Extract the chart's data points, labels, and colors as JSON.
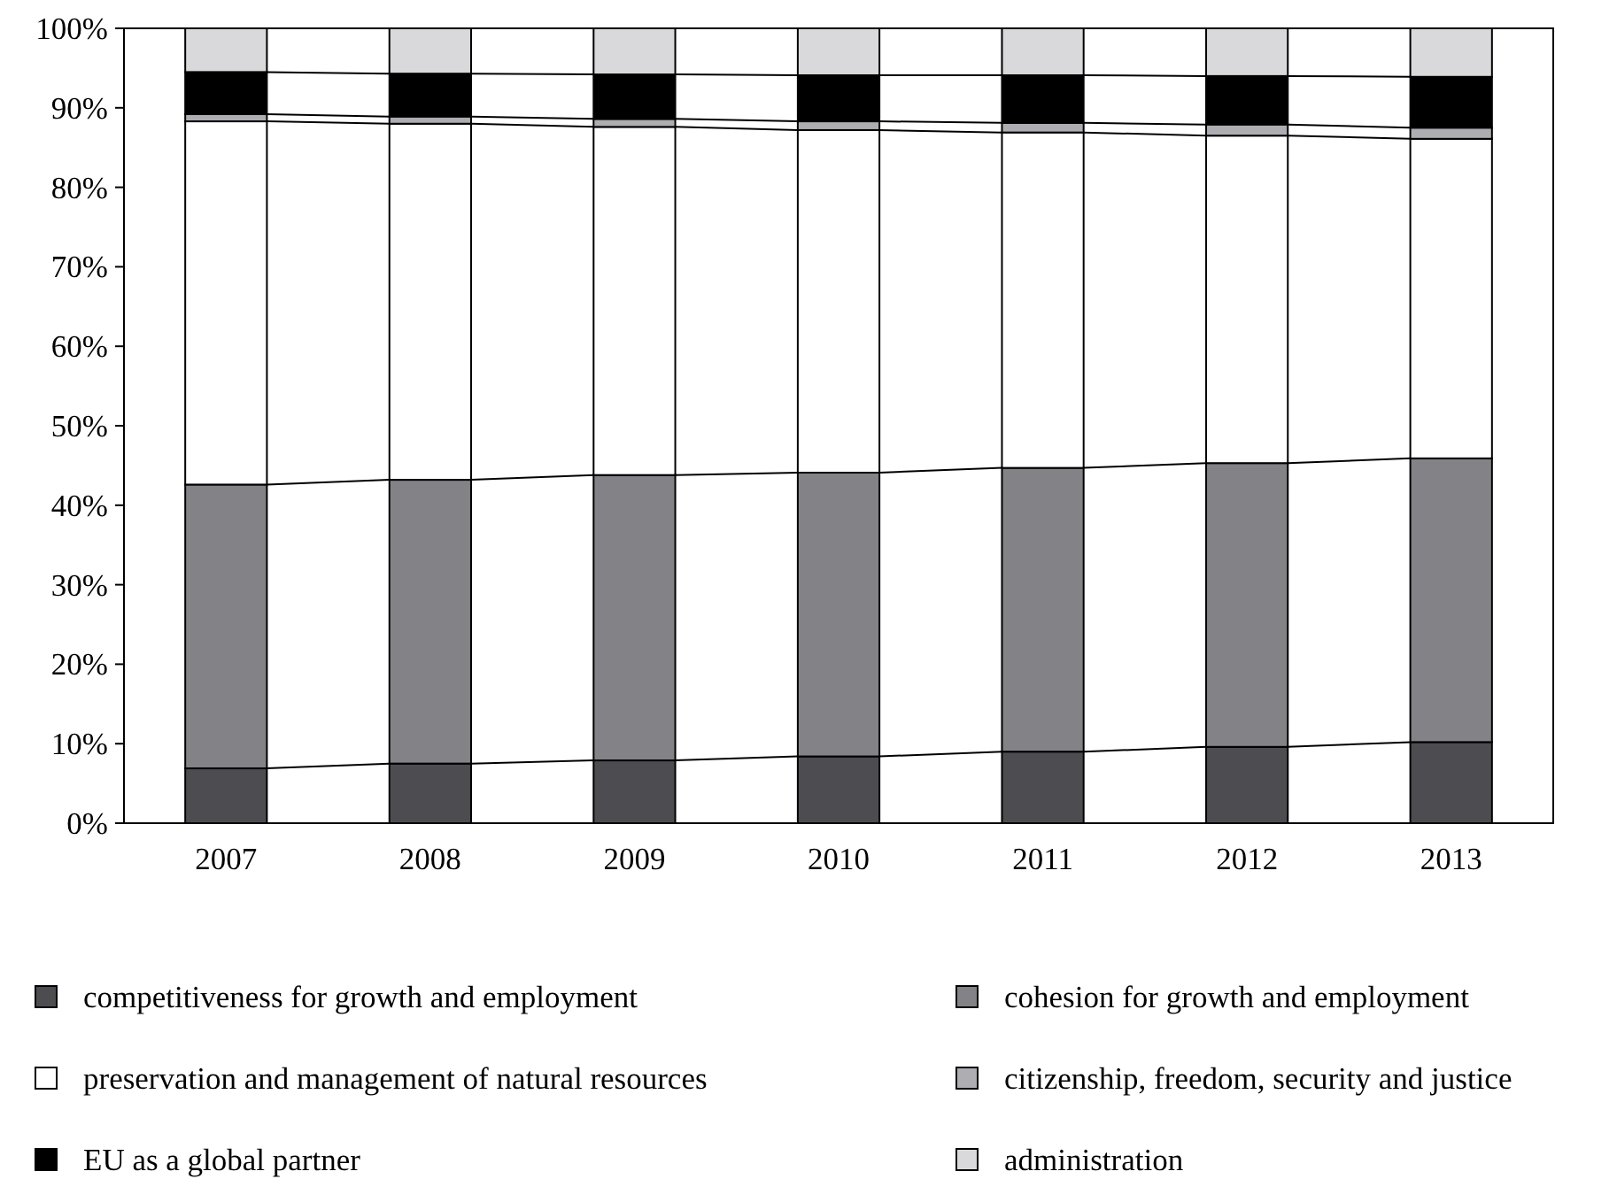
{
  "chart_data": {
    "type": "bar",
    "stacked": true,
    "categories": [
      "2007",
      "2008",
      "2009",
      "2010",
      "2011",
      "2012",
      "2013"
    ],
    "series": [
      {
        "name": "competitiveness for growth and employment",
        "color": "#4d4c51",
        "values": [
          6.9,
          7.5,
          7.9,
          8.4,
          9.0,
          9.6,
          10.2
        ]
      },
      {
        "name": "cohesion for growth and employment",
        "color": "#838287",
        "values": [
          35.7,
          35.7,
          35.9,
          35.7,
          35.7,
          35.7,
          35.7
        ]
      },
      {
        "name": "preservation and management of natural resources",
        "color": "#ffffff",
        "values": [
          45.7,
          44.8,
          43.8,
          43.1,
          42.2,
          41.2,
          40.2
        ]
      },
      {
        "name": "citizenship, freedom, security and justice",
        "color": "#aeadb2",
        "values": [
          0.9,
          0.9,
          1.0,
          1.1,
          1.2,
          1.4,
          1.4
        ]
      },
      {
        "name": "EU as a global partner",
        "color": "#000000",
        "values": [
          5.3,
          5.4,
          5.6,
          5.8,
          6.0,
          6.1,
          6.4
        ]
      },
      {
        "name": "administration",
        "color": "#d9d9db",
        "values": [
          5.5,
          5.7,
          5.8,
          5.9,
          5.9,
          6.0,
          6.1
        ]
      }
    ],
    "ylim": [
      0,
      100
    ],
    "yticks": [
      {
        "value": 0,
        "label": "0%"
      },
      {
        "value": 10,
        "label": "10%"
      },
      {
        "value": 20,
        "label": "20%"
      },
      {
        "value": 30,
        "label": "30%"
      },
      {
        "value": 40,
        "label": "40%"
      },
      {
        "value": 50,
        "label": "50%"
      },
      {
        "value": 60,
        "label": "60%"
      },
      {
        "value": 70,
        "label": "70%"
      },
      {
        "value": 80,
        "label": "80%"
      },
      {
        "value": 90,
        "label": "90%"
      },
      {
        "value": 100,
        "label": "100%"
      }
    ],
    "legend": "bottom"
  }
}
